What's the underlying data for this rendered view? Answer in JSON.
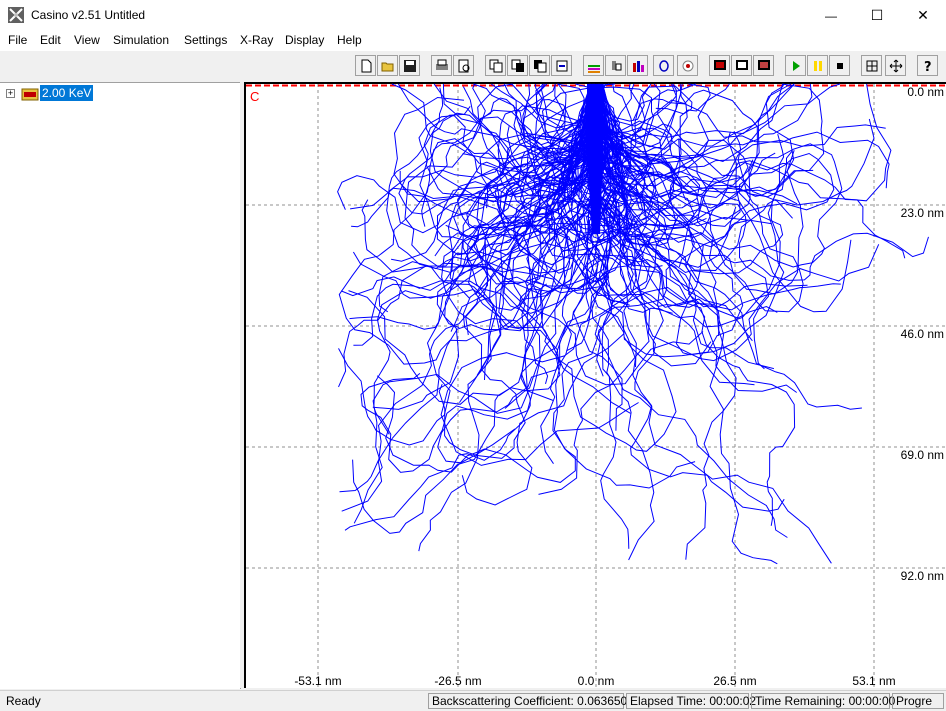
{
  "window": {
    "title": "Casino v2.51 Untitled",
    "minimize_glyph": "—",
    "maximize_glyph": "☐",
    "close_glyph": "✕"
  },
  "menu": [
    "File",
    "Edit",
    "View",
    "Simulation",
    "Settings",
    "X-Ray",
    "Display",
    "Help"
  ],
  "toolbar": {
    "icons": [
      "new-file-icon",
      "open-folder-icon",
      "save-icon",
      "print-icon",
      "print-preview-icon",
      "copy-distribution-icon",
      "copy-trajectories-icon",
      "copy-image-icon",
      "refresh-icon",
      "sample-icon",
      "microscope-icon",
      "histogram-icon",
      "circle-o-icon",
      "target-icon",
      "display-1-icon",
      "display-2-icon",
      "display-3-icon",
      "play-icon",
      "pause-icon",
      "stop-icon",
      "zoom-fit-icon",
      "pan-icon",
      "help-icon"
    ],
    "play_color": "#00a000",
    "pause_color": "#ffd800"
  },
  "tree": {
    "expander": "+",
    "label": "2.00 KeV",
    "icon": "simulation-icon"
  },
  "plot": {
    "region_label": "C",
    "region_color": "#ff0000",
    "trajectory_color": "#0000ff",
    "x_ticks": [
      "-53.1 nm",
      "-26.5 nm",
      "0.0 nm",
      "26.5 nm",
      "53.1 nm"
    ],
    "y_ticks": [
      "0.0 nm",
      "23.0 nm",
      "46.0 nm",
      "69.0 nm",
      "92.0 nm"
    ],
    "grid": "dashed"
  },
  "status": {
    "ready": "Ready",
    "backscatter": "Backscattering Coefficient: 0.063650",
    "elapsed": "Elapsed Time: 00:00:02",
    "remaining": "Time Remaining: 00:00:00",
    "progress": "Progre"
  }
}
